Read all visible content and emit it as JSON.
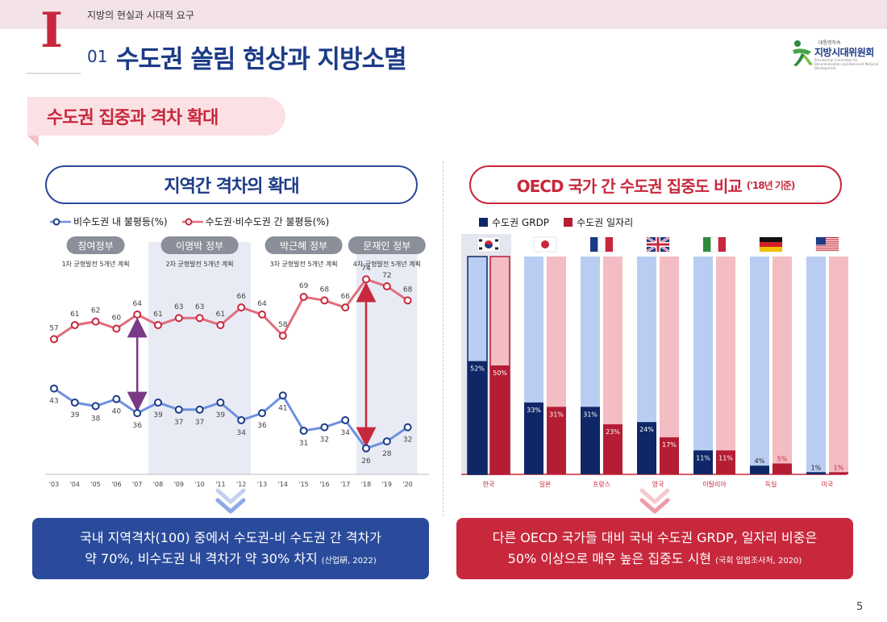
{
  "header": {
    "breadcrumb": "지방의 현실과 시대적 요구",
    "roman": "I",
    "section_number": "01",
    "title": "수도권 쏠림 현상과 지방소멸"
  },
  "logo": {
    "small": "대통령직속",
    "name": "지방시대위원회",
    "tiny": "Presidential Committee for Decentralization and Balanced National Development"
  },
  "section_tag": "수도권 집중과 격차 확대",
  "left_panel": {
    "title": "지역간 격차의 확대",
    "legend": [
      "비수도권 내 불평등(%)",
      "수도권·비수도권 간 불평등(%)"
    ],
    "summary_line1": "국내 지역격차(100) 중에서 수도권-비 수도권 간 격차가",
    "summary_line2": "약 70%, 비수도권 내 격차가 약 30% 차지",
    "summary_source": "(산업硏, 2022)"
  },
  "right_panel": {
    "title": "OECD 국가 간 수도권 집중도 비교",
    "title_sub": "('18년 기준)",
    "legend": [
      "수도권 GRDP",
      "수도권 일자리"
    ],
    "summary_line1": "다른 OECD 국가들 대비 국내 수도권 GRDP, 일자리 비중은",
    "summary_line2": "50% 이상으로 매우 높은 집중도 시현",
    "summary_source": "(국회 입법조사처, 2020)"
  },
  "page_number": "5",
  "colors": {
    "navy": "#1c3b87",
    "red": "#c8283c",
    "line_blue": "#6f90e0",
    "line_red": "#e06d7d",
    "bar_navy": "#0f2766",
    "bar_red": "#b41d34",
    "bar_bg_blue": "#b9cdf2",
    "bar_bg_red": "#f4bcc3",
    "band": "#e8ebf4"
  },
  "chart_data": [
    {
      "type": "line",
      "x": [
        "'03",
        "'04",
        "'05",
        "'06",
        "'07",
        "'08",
        "'09",
        "'10",
        "'11",
        "'12",
        "'13",
        "'14",
        "'15",
        "'16",
        "'17",
        "'18",
        "'19",
        "'20"
      ],
      "series": [
        {
          "name": "비수도권 내 불평등(%)",
          "values": [
            43,
            39,
            38,
            40,
            36,
            39,
            37,
            37,
            39,
            34,
            36,
            41,
            31,
            32,
            34,
            26,
            28,
            32
          ]
        },
        {
          "name": "수도권·비수도권 간 불평등(%)",
          "values": [
            57,
            61,
            62,
            60,
            64,
            61,
            63,
            63,
            61,
            66,
            64,
            58,
            69,
            68,
            66,
            74,
            72,
            68
          ]
        }
      ],
      "ylim": [
        20,
        80
      ],
      "periods": [
        {
          "name": "참여정부",
          "plan": "1차 균형발전 5개년 계획",
          "from": 0,
          "to": 4,
          "shaded": false
        },
        {
          "name": "이명박 정부",
          "plan": "2차 균형발전 5개년 계획",
          "from": 5,
          "to": 9,
          "shaded": true
        },
        {
          "name": "박근혜 정부",
          "plan": "3차 균형발전 5개년 계획",
          "from": 10,
          "to": 14,
          "shaded": false
        },
        {
          "name": "문재인 정부",
          "plan": "4차 균형발전 5개년 계획",
          "from": 15,
          "to": 17,
          "shaded": true
        }
      ],
      "gap_arrows": [
        4,
        15
      ]
    },
    {
      "type": "bar",
      "categories": [
        "한국",
        "일본",
        "프랑스",
        "영국",
        "이탈리아",
        "독일",
        "미국"
      ],
      "flags": [
        "kr",
        "jp",
        "fr",
        "gb",
        "it",
        "de",
        "us"
      ],
      "series": [
        {
          "name": "수도권 GRDP",
          "values": [
            52,
            33,
            31,
            24,
            11,
            4,
            1
          ]
        },
        {
          "name": "수도권 일자리",
          "values": [
            50,
            31,
            23,
            17,
            11,
            5,
            1
          ]
        }
      ],
      "value_labels": [
        [
          "52%",
          "33%",
          "31%",
          "24%",
          "11%",
          "4%",
          "1%"
        ],
        [
          "50%",
          "31%",
          "23%",
          "17%",
          "11%",
          "5%",
          "1%"
        ]
      ],
      "ylim": [
        0,
        100
      ],
      "highlight_category": "한국"
    }
  ]
}
